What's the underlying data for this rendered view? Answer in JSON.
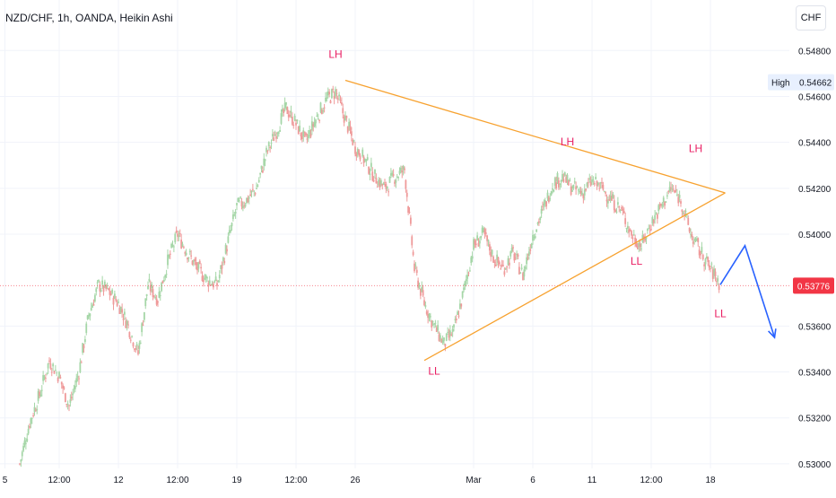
{
  "header": {
    "symbol_title": "NZD/CHF, 1h, OANDA, Heikin Ashi",
    "currency_label": "CHF"
  },
  "price_axis": {
    "ticks": [
      {
        "value": 0.548,
        "label": "0.54800"
      },
      {
        "value": 0.546,
        "label": "0.54600"
      },
      {
        "value": 0.544,
        "label": "0.54400"
      },
      {
        "value": 0.542,
        "label": "0.54200"
      },
      {
        "value": 0.54,
        "label": "0.54000"
      },
      {
        "value": 0.536,
        "label": "0.53600"
      },
      {
        "value": 0.534,
        "label": "0.53400"
      },
      {
        "value": 0.532,
        "label": "0.53200"
      },
      {
        "value": 0.53,
        "label": "0.53000"
      }
    ],
    "high_label": "High",
    "high_value": "0.54662",
    "last_price": "0.53776"
  },
  "time_axis": {
    "ticks": [
      {
        "t": -5,
        "label": "5"
      },
      {
        "t": 6,
        "label": "12:00"
      },
      {
        "t": 18,
        "label": "12"
      },
      {
        "t": 30,
        "label": "12:00"
      },
      {
        "t": 42,
        "label": "19"
      },
      {
        "t": 54,
        "label": "12:00"
      },
      {
        "t": 66,
        "label": "26"
      },
      {
        "t": 90,
        "label": "Mar"
      },
      {
        "t": 102,
        "label": "6"
      },
      {
        "t": 114,
        "label": "11"
      },
      {
        "t": 126,
        "label": "12:00"
      },
      {
        "t": 138,
        "label": "18"
      }
    ]
  },
  "colors": {
    "up": "#26a69a",
    "up_light": "#a5d6a7",
    "down": "#ef5350",
    "down_light": "#ef9a9a",
    "triangle": "#f7a230",
    "projection": "#2962ff",
    "annotation": "#e91e63",
    "last_price_bg": "#f23645",
    "grid": "#f0f3fa"
  },
  "chart_data": {
    "type": "candlestick",
    "subtype": "Heikin Ashi",
    "symbol": "NZD/CHF",
    "interval": "1h",
    "source": "OANDA",
    "y_range": [
      0.5298,
      0.5502
    ],
    "x_range": [
      -6,
      154
    ],
    "series_close": [
      [
        -2,
        0.53
      ],
      [
        0,
        0.5318
      ],
      [
        2,
        0.533
      ],
      [
        4,
        0.5345
      ],
      [
        6,
        0.5338
      ],
      [
        8,
        0.5325
      ],
      [
        10,
        0.534
      ],
      [
        12,
        0.5365
      ],
      [
        14,
        0.5378
      ],
      [
        16,
        0.5375
      ],
      [
        18,
        0.537
      ],
      [
        20,
        0.536
      ],
      [
        22,
        0.5348
      ],
      [
        24,
        0.5378
      ],
      [
        26,
        0.5372
      ],
      [
        28,
        0.5388
      ],
      [
        30,
        0.54
      ],
      [
        32,
        0.5392
      ],
      [
        34,
        0.5385
      ],
      [
        36,
        0.538
      ],
      [
        38,
        0.5378
      ],
      [
        40,
        0.5395
      ],
      [
        42,
        0.5412
      ],
      [
        44,
        0.5415
      ],
      [
        46,
        0.542
      ],
      [
        48,
        0.5435
      ],
      [
        50,
        0.5445
      ],
      [
        52,
        0.5455
      ],
      [
        54,
        0.5448
      ],
      [
        56,
        0.544
      ],
      [
        58,
        0.545
      ],
      [
        60,
        0.5458
      ],
      [
        62,
        0.5462
      ],
      [
        64,
        0.545
      ],
      [
        66,
        0.5438
      ],
      [
        68,
        0.5432
      ],
      [
        70,
        0.5425
      ],
      [
        72,
        0.542
      ],
      [
        74,
        0.5425
      ],
      [
        76,
        0.5428
      ],
      [
        78,
        0.5385
      ],
      [
        80,
        0.537
      ],
      [
        82,
        0.536
      ],
      [
        84,
        0.5352
      ],
      [
        86,
        0.5358
      ],
      [
        88,
        0.5375
      ],
      [
        90,
        0.5395
      ],
      [
        92,
        0.54
      ],
      [
        94,
        0.539
      ],
      [
        96,
        0.5385
      ],
      [
        98,
        0.5392
      ],
      [
        100,
        0.5382
      ],
      [
        102,
        0.54
      ],
      [
        104,
        0.541
      ],
      [
        106,
        0.5422
      ],
      [
        108,
        0.5425
      ],
      [
        110,
        0.542
      ],
      [
        112,
        0.5418
      ],
      [
        114,
        0.5423
      ],
      [
        116,
        0.542
      ],
      [
        118,
        0.5415
      ],
      [
        120,
        0.541
      ],
      [
        122,
        0.54
      ],
      [
        124,
        0.5395
      ],
      [
        126,
        0.5405
      ],
      [
        128,
        0.5412
      ],
      [
        130,
        0.542
      ],
      [
        132,
        0.5415
      ],
      [
        134,
        0.54
      ],
      [
        136,
        0.5392
      ],
      [
        138,
        0.5385
      ],
      [
        140,
        0.5378
      ]
    ],
    "annotations": [
      {
        "text": "LH",
        "t": 62,
        "price": 0.5478
      },
      {
        "text": "LH",
        "t": 109,
        "price": 0.544
      },
      {
        "text": "LH",
        "t": 135,
        "price": 0.5437
      },
      {
        "text": "LL",
        "t": 82,
        "price": 0.534
      },
      {
        "text": "LL",
        "t": 123,
        "price": 0.5388
      },
      {
        "text": "LL",
        "t": 140,
        "price": 0.5365
      }
    ],
    "triangle_lines": [
      {
        "from": [
          64,
          0.5467
        ],
        "to": [
          141,
          0.5418
        ]
      },
      {
        "from": [
          80,
          0.5345
        ],
        "to": [
          141,
          0.5418
        ]
      }
    ],
    "projection": [
      [
        140,
        0.5378
      ],
      [
        145,
        0.5395
      ],
      [
        151,
        0.5355
      ]
    ],
    "high": 0.54662,
    "last": 0.53776
  }
}
